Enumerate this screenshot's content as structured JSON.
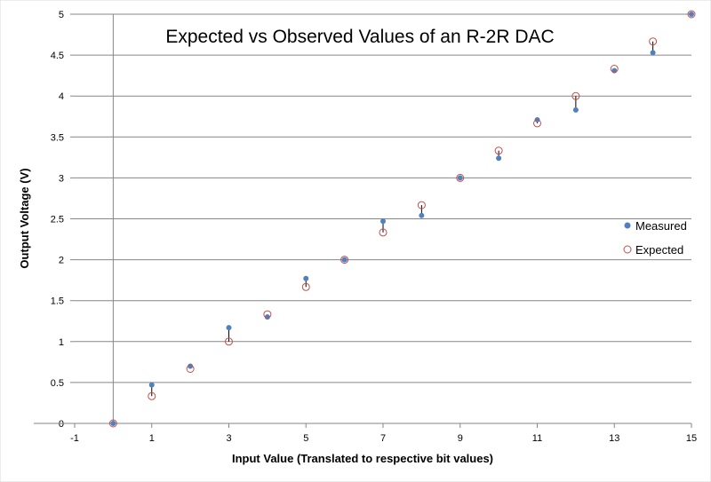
{
  "chart_data": {
    "type": "scatter",
    "title": "Expected vs Observed Values of an R-2R DAC",
    "xlabel": "Input Value (Translated to respective bit values)",
    "ylabel": "Output Voltage (V)",
    "xlim": [
      -1,
      15
    ],
    "ylim": [
      0,
      5
    ],
    "xticks": [
      "-1",
      "1",
      "3",
      "5",
      "7",
      "9",
      "11",
      "13",
      "15"
    ],
    "yticks": [
      "0",
      "0.5",
      "1",
      "1.5",
      "2",
      "2.5",
      "3",
      "3.5",
      "4",
      "4.5",
      "5"
    ],
    "grid": "horizontal",
    "legend_position": "right",
    "series": [
      {
        "name": "Measured",
        "marker": "filled-circle",
        "color": "#4f81bd",
        "x": [
          0,
          1,
          2,
          3,
          4,
          5,
          6,
          7,
          8,
          9,
          10,
          11,
          12,
          13,
          14,
          15
        ],
        "y": [
          0.0,
          0.47,
          0.7,
          1.17,
          1.3,
          1.77,
          2.0,
          2.47,
          2.54,
          3.0,
          3.24,
          3.71,
          3.83,
          4.31,
          4.53,
          5.0
        ]
      },
      {
        "name": "Expected",
        "marker": "open-circle",
        "color": "#c0504d",
        "x": [
          0,
          1,
          2,
          3,
          4,
          5,
          6,
          7,
          8,
          9,
          10,
          11,
          12,
          13,
          14,
          15
        ],
        "y": [
          0.0,
          0.333,
          0.667,
          1.0,
          1.333,
          1.667,
          2.0,
          2.333,
          2.667,
          3.0,
          3.333,
          3.667,
          4.0,
          4.333,
          4.667,
          5.0
        ]
      }
    ],
    "error_lines_color": "#000000"
  }
}
